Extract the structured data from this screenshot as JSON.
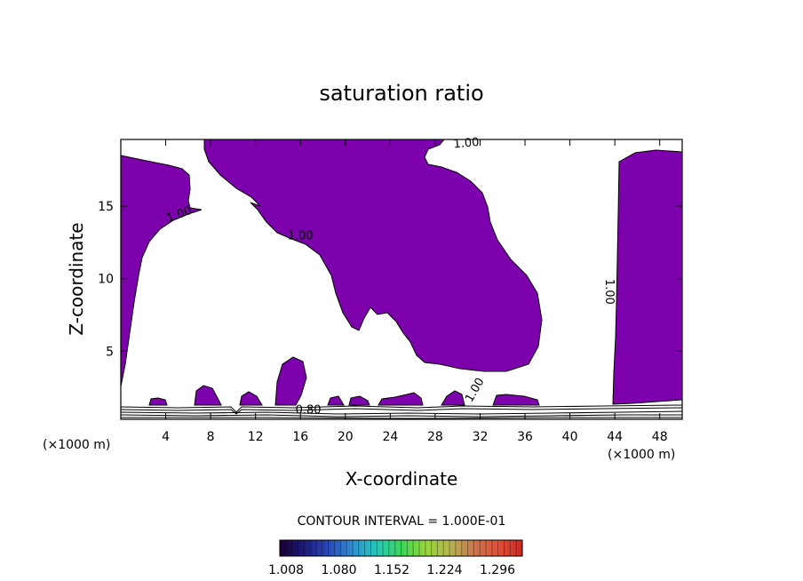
{
  "colors": {
    "fill": "#7d00ad",
    "background": "#ffffff",
    "axis": "#000000"
  },
  "chart_data": {
    "type": "contour",
    "title": "saturation ratio",
    "xlabel": "X-coordinate",
    "ylabel": "Z-coordinate",
    "x_unit": "(×1000 m)",
    "x_unit_right": "(×1000 m)",
    "xlim": [
      0,
      50
    ],
    "ylim": [
      0.3,
      19.6
    ],
    "x_ticks": [
      4,
      8,
      12,
      16,
      20,
      24,
      28,
      32,
      36,
      40,
      44,
      48
    ],
    "y_ticks": [
      5,
      10,
      15
    ],
    "contour_interval_text": "CONTOUR INTERVAL = 1.000E-01",
    "contour_labels": [
      {
        "text": "1.00",
        "x": 5.3,
        "z": 14.2,
        "angle": -20
      },
      {
        "text": "1.00",
        "x": 16.0,
        "z": 12.7,
        "angle": 0
      },
      {
        "text": "1.00",
        "x": 30.8,
        "z": 19.1,
        "angle": -5
      },
      {
        "text": "1.00",
        "x": 43.2,
        "z": 9.1,
        "angle": 90
      },
      {
        "text": "1.00",
        "x": 31.8,
        "z": 2.2,
        "angle": -60
      },
      {
        "text": "0.80",
        "x": 16.7,
        "z": 0.7,
        "angle": 0
      }
    ],
    "colorbar": {
      "ticks": [
        "1.008",
        "1.080",
        "1.152",
        "1.224",
        "1.296"
      ],
      "colors": [
        "#1a0033",
        "#1e1a7a",
        "#2a48b8",
        "#2f8fd0",
        "#25c9b8",
        "#3cd45a",
        "#96d63a",
        "#b6b650",
        "#c8764e",
        "#e0503a",
        "#c82a22"
      ]
    }
  }
}
